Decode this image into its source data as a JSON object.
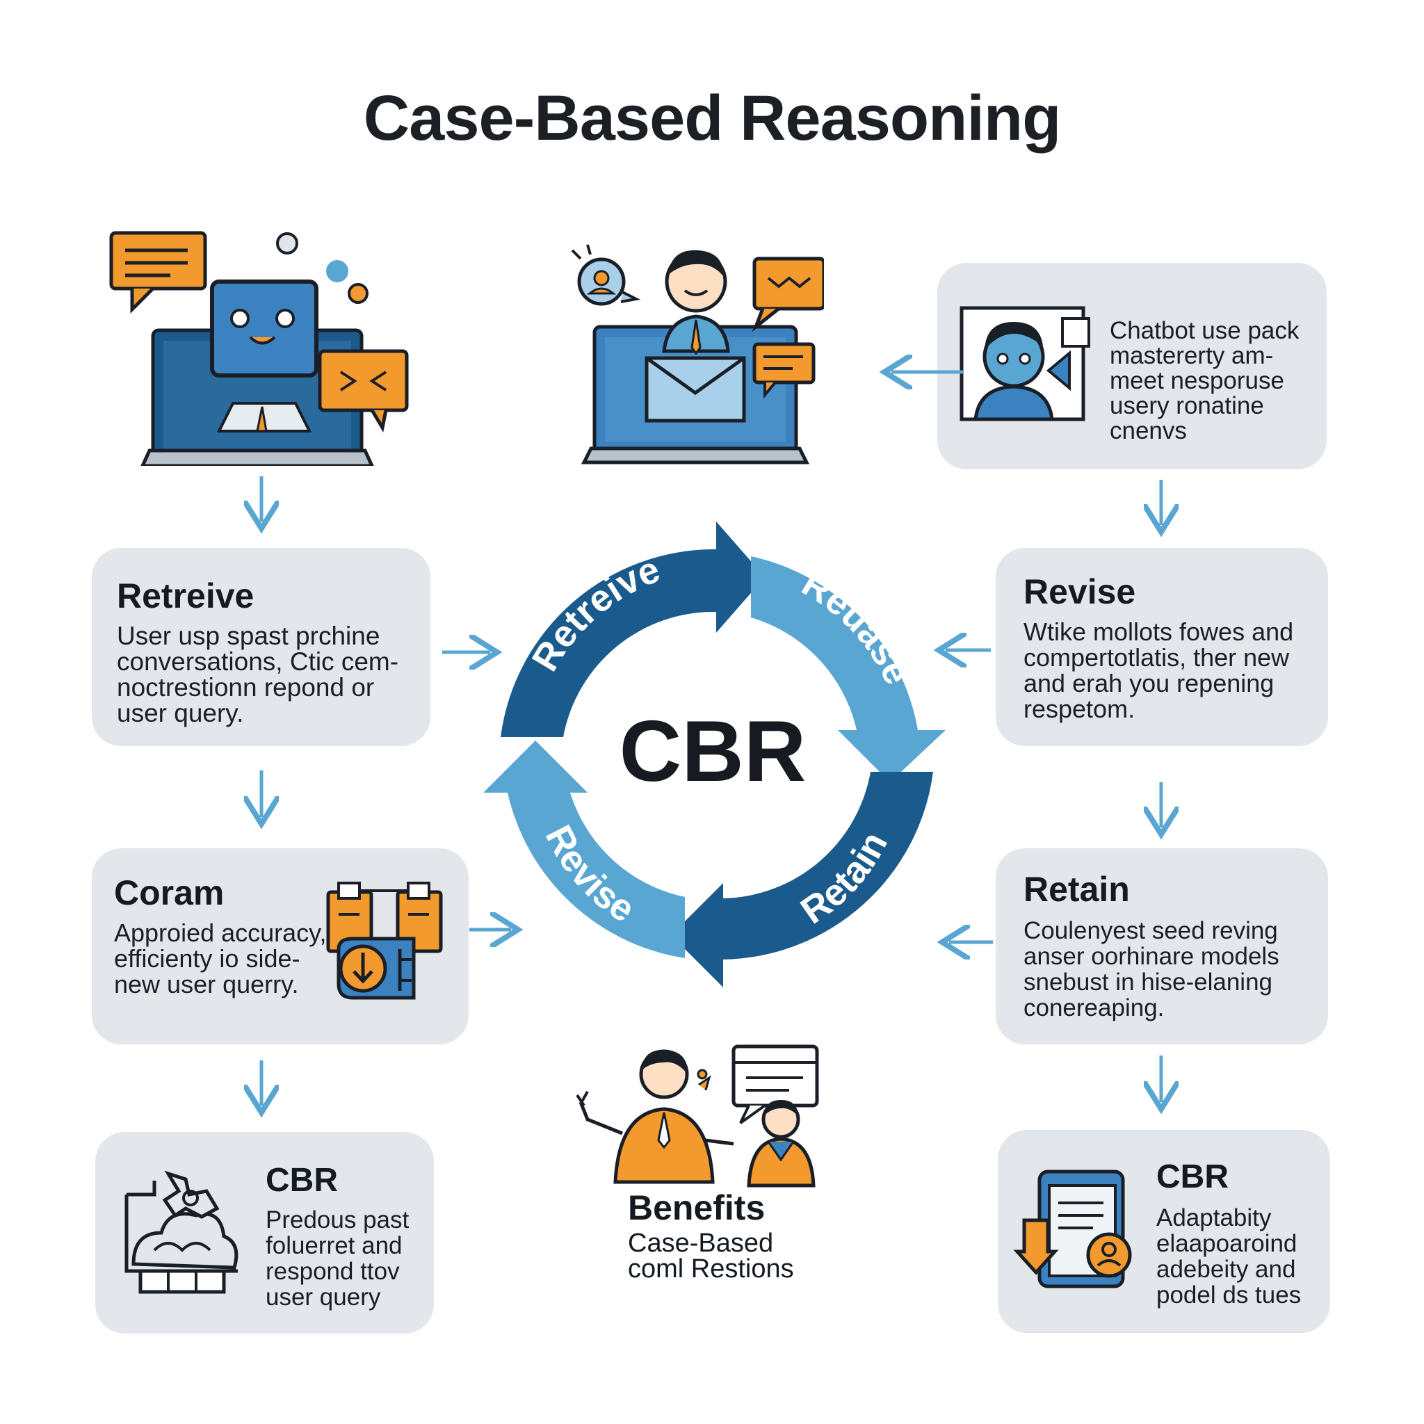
{
  "title": "Case-Based Reasoning",
  "center_label": "CBR",
  "cycle": {
    "segments": [
      "Retreive",
      "Reuase",
      "Retain",
      "Revise"
    ],
    "colors": {
      "dark": "#1b5a8c",
      "light": "#5aa6d2"
    }
  },
  "cards": {
    "top_right": {
      "lines": [
        "Chatbot use pack",
        "mastererty am-",
        "meet nesporuse",
        "usery ronatine",
        "cnenvs"
      ]
    },
    "retrieve": {
      "heading": "Retreive",
      "lines": [
        "User usp spast prchine",
        "conversations, Ctic cem-",
        "noctrestionn repond or",
        "user query."
      ]
    },
    "coram": {
      "heading": "Coram",
      "lines": [
        "Approied accuracy,",
        "efficienty io side-",
        "new user querry."
      ]
    },
    "cbr_left": {
      "heading": "CBR",
      "lines": [
        "Predous past",
        "foluerret and",
        "respond ttov",
        "user query"
      ]
    },
    "revise": {
      "heading": "Revise",
      "lines": [
        "Wtike mollots fowes and",
        "compertotlatis, ther new",
        "and erah you repening",
        "respetom."
      ]
    },
    "retain": {
      "heading": "Retain",
      "lines": [
        "Coulenyest seed reving",
        "anser oorhinare models",
        "snebust in hise-elaning",
        "conereaping."
      ]
    },
    "cbr_right": {
      "heading": "CBR",
      "lines": [
        "Adaptabity",
        "elaapoaroind",
        "adebeity and",
        "podel ds tues"
      ]
    }
  },
  "benefits": {
    "heading": "Benefits",
    "lines": [
      "Case-Based",
      "coml Restions"
    ]
  },
  "icons": [
    "chatbot-laptop-icon",
    "support-agent-laptop-icon",
    "chatbot-profile-icon",
    "documents-download-icon",
    "brain-network-icon",
    "people-conversation-icon",
    "tablet-download-icon"
  ]
}
